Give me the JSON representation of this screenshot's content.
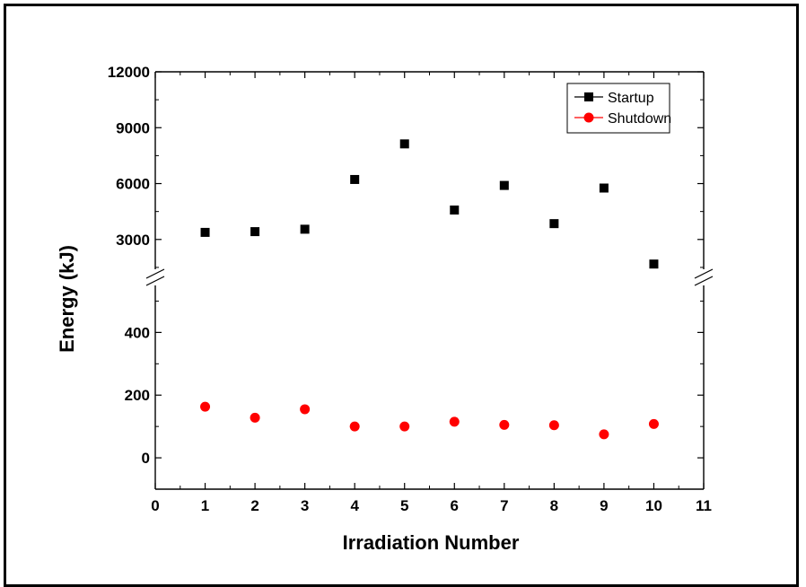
{
  "chart_data": {
    "type": "scatter",
    "title": "",
    "xlabel": "Irradiation Number",
    "ylabel": "Energy (kJ)",
    "xlim": [
      0,
      11
    ],
    "x_ticks": [
      0,
      1,
      2,
      3,
      4,
      5,
      6,
      7,
      8,
      9,
      10,
      11
    ],
    "y_axis_break": true,
    "y_segments": [
      {
        "range": [
          -100,
          550
        ],
        "ticks": [
          0,
          200,
          400
        ]
      },
      {
        "range": [
          1400,
          12000
        ],
        "ticks": [
          3000,
          6000,
          9000,
          12000
        ]
      }
    ],
    "grid": false,
    "legend_position": "top-right",
    "series": [
      {
        "name": "Startup",
        "marker": "square",
        "color": "#000000",
        "x": [
          1,
          2,
          3,
          4,
          5,
          6,
          7,
          8,
          9,
          10
        ],
        "y": [
          3380,
          3420,
          3550,
          6220,
          8130,
          4580,
          5900,
          3850,
          5760,
          1680
        ]
      },
      {
        "name": "Shutdown",
        "marker": "circle",
        "color": "#ff0000",
        "x": [
          1,
          2,
          3,
          4,
          5,
          6,
          7,
          8,
          9,
          10
        ],
        "y": [
          163,
          128,
          155,
          100,
          100,
          115,
          105,
          104,
          75,
          108
        ]
      }
    ]
  }
}
